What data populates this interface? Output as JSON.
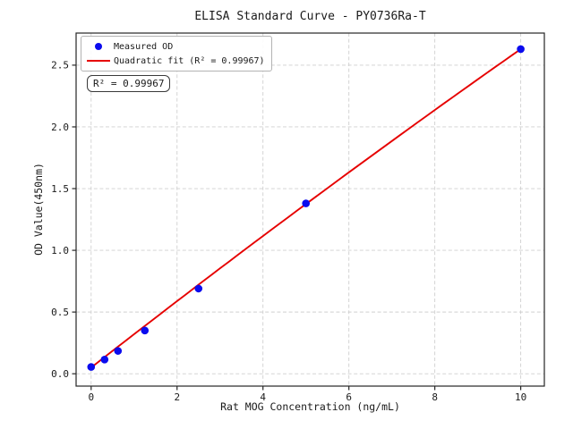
{
  "chart_data": {
    "type": "scatter",
    "title": "ELISA Standard Curve - PY0736Ra-T",
    "xlabel": "Rat MOG Concentration (ng/mL)",
    "ylabel": "OD Value(450nm)",
    "series": [
      {
        "name": "Measured OD",
        "type": "scatter",
        "marker": "circle",
        "color": "#0b0bee",
        "x": [
          0,
          0.313,
          0.625,
          1.25,
          2.5,
          5,
          10
        ],
        "y": [
          0.055,
          0.115,
          0.185,
          0.35,
          0.69,
          1.38,
          2.63
        ]
      },
      {
        "name": "Quadratic fit (R² = 0.99967)",
        "type": "line",
        "fit": "quadratic",
        "r_squared": 0.99967,
        "color": "#e60000",
        "coeffs": {
          "a": 0.05,
          "b": 0.272,
          "c": -0.0014
        },
        "x_range": [
          0,
          10
        ]
      }
    ],
    "annotation": {
      "text": "R² = 0.99967"
    },
    "axes": {
      "xlim": [
        -0.35,
        10.55
      ],
      "ylim": [
        -0.1,
        2.76
      ],
      "x_tick_values": [
        0,
        2,
        4,
        6,
        8,
        10
      ],
      "x_tick_labels": [
        "0",
        "2",
        "4",
        "6",
        "8",
        "10"
      ],
      "y_tick_values": [
        0,
        0.5,
        1,
        1.5,
        2,
        2.5
      ],
      "y_tick_labels": [
        "0.0",
        "0.5",
        "1.0",
        "1.5",
        "2.0",
        "2.5"
      ],
      "grid": "dashed"
    },
    "legend_position": "upper left",
    "colors": {
      "scatter": "#0b0bee",
      "fit_line": "#e60000",
      "grid": "#cfcfcf",
      "spine": "#262626",
      "text": "#1a1a1a",
      "background": "#ffffff"
    }
  }
}
